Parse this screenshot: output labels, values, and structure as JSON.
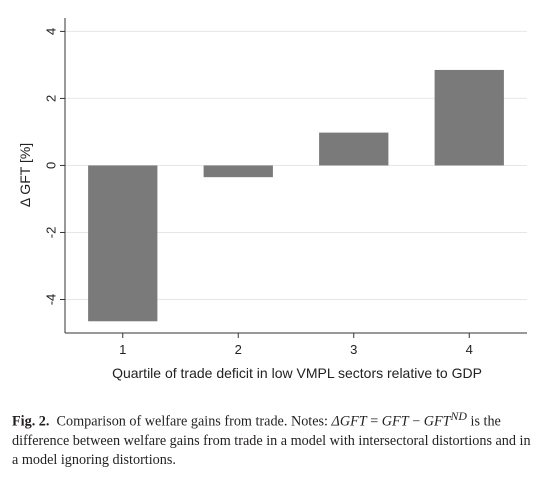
{
  "chart_data": {
    "type": "bar",
    "categories": [
      "1",
      "2",
      "3",
      "4"
    ],
    "values": [
      -4.65,
      -0.35,
      0.98,
      2.85
    ],
    "ylim": [
      -5,
      4.4
    ],
    "yticks": [
      -4,
      -2,
      0,
      2,
      4
    ],
    "ytick_labels": [
      "-4",
      "-2",
      "0",
      "2",
      "4"
    ],
    "ylabel": "Δ GFT [%]",
    "xlabel": "Quartile of trade deficit in low VMPL sectors relative to GDP",
    "title": "",
    "bar_color": "#7a7a7a",
    "grid": true,
    "gridline_color": "#e6e6e6",
    "legend": "none"
  },
  "caption": {
    "label": "Fig. 2.",
    "text_a": "Comparison of welfare gains from trade. Notes: ",
    "math_a": "ΔGFT",
    "eq": " = ",
    "math_b": "GFT",
    "minus": " − ",
    "math_c": "GFT",
    "sup": "ND",
    "text_b": " is the difference between welfare gains from trade in a model with intersectoral distortions and in a model ignoring distortions."
  }
}
